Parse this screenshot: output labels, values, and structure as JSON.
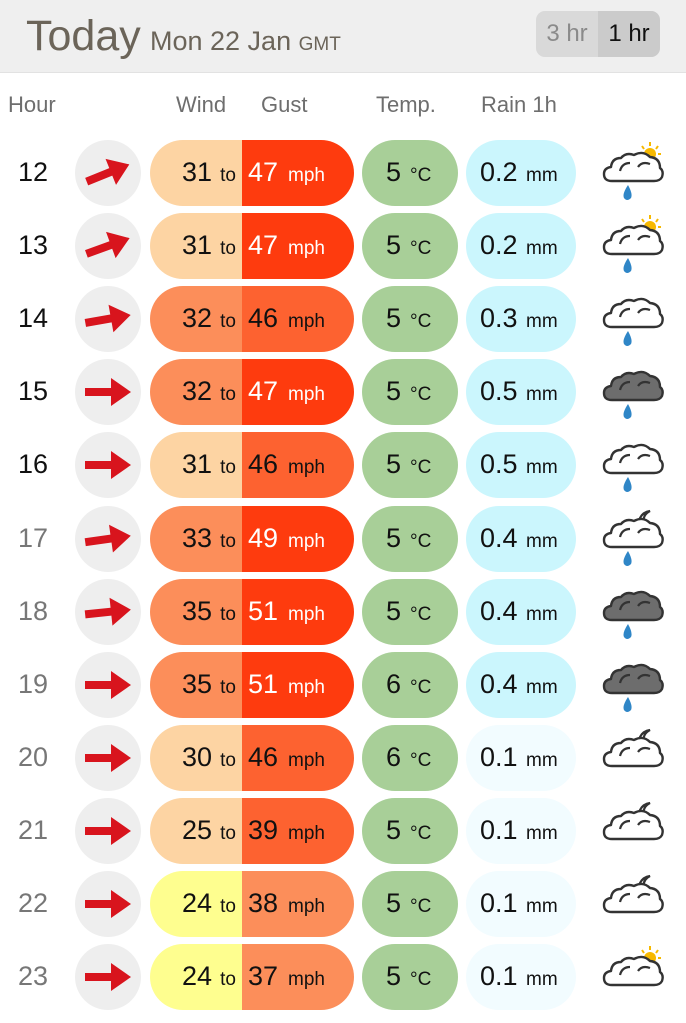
{
  "header": {
    "title": "Today",
    "date": "Mon 22 Jan",
    "timezone": "GMT"
  },
  "interval_toggle": {
    "options": [
      "3 hr",
      "1 hr"
    ],
    "selected": "1 hr"
  },
  "columns": {
    "hour": "Hour",
    "wind": "Wind",
    "gust": "Gust",
    "temp": "Temp.",
    "rain": "Rain 1h"
  },
  "units": {
    "to": "to",
    "speed": "mph",
    "temp": "°C",
    "rain": "mm"
  },
  "colors": {
    "wind_scale": {
      "24": "#fefe8f",
      "25": "#fdd4a3",
      "30": "#fdd4a3",
      "31": "#fdd4a3",
      "32": "#fc8e5a",
      "33": "#fc8e5a",
      "35": "#fc8e5a"
    },
    "gust_scale": {
      "37": "#fc8e5a",
      "38": "#fc8e5a",
      "39": "#fd6230",
      "46": "#fd6230",
      "47": "#fe3b0e",
      "49": "#fe3b0e",
      "51": "#fe3b0e"
    },
    "temp_pill": "#a8cf98",
    "rain_light": "#f2fcff",
    "rain_heavy": "#cbf6fd",
    "arrow": "#d8141d"
  },
  "rows": [
    {
      "hour": "12",
      "past": false,
      "wind": "31",
      "wind_bg": "#fdd4a3",
      "gust": "47",
      "gust_bg": "#fe3b0e",
      "gust_text": "light",
      "temp": "5",
      "rain": "0.2",
      "rain_bg": "#cbf6fd",
      "icon": "sun-cloud-rain-icon",
      "dir_deg": -22
    },
    {
      "hour": "13",
      "past": false,
      "wind": "31",
      "wind_bg": "#fdd4a3",
      "gust": "47",
      "gust_bg": "#fe3b0e",
      "gust_text": "light",
      "temp": "5",
      "rain": "0.2",
      "rain_bg": "#cbf6fd",
      "icon": "sun-cloud-rain-icon",
      "dir_deg": -20
    },
    {
      "hour": "14",
      "past": false,
      "wind": "32",
      "wind_bg": "#fc8e5a",
      "gust": "46",
      "gust_bg": "#fd6230",
      "gust_text": "dark",
      "temp": "5",
      "rain": "0.3",
      "rain_bg": "#cbf6fd",
      "icon": "cloud-rain-icon",
      "dir_deg": -10
    },
    {
      "hour": "15",
      "past": false,
      "wind": "32",
      "wind_bg": "#fc8e5a",
      "gust": "47",
      "gust_bg": "#fe3b0e",
      "gust_text": "light",
      "temp": "5",
      "rain": "0.5",
      "rain_bg": "#cbf6fd",
      "icon": "dark-cloud-rain-icon",
      "dir_deg": 0
    },
    {
      "hour": "16",
      "past": false,
      "wind": "31",
      "wind_bg": "#fdd4a3",
      "gust": "46",
      "gust_bg": "#fd6230",
      "gust_text": "dark",
      "temp": "5",
      "rain": "0.5",
      "rain_bg": "#cbf6fd",
      "icon": "cloud-rain-icon",
      "dir_deg": 0
    },
    {
      "hour": "17",
      "past": true,
      "wind": "33",
      "wind_bg": "#fc8e5a",
      "gust": "49",
      "gust_bg": "#fe3b0e",
      "gust_text": "light",
      "temp": "5",
      "rain": "0.4",
      "rain_bg": "#cbf6fd",
      "icon": "moon-cloud-rain-icon",
      "dir_deg": -8
    },
    {
      "hour": "18",
      "past": true,
      "wind": "35",
      "wind_bg": "#fc8e5a",
      "gust": "51",
      "gust_bg": "#fe3b0e",
      "gust_text": "light",
      "temp": "5",
      "rain": "0.4",
      "rain_bg": "#cbf6fd",
      "icon": "dark-cloud-rain-icon",
      "dir_deg": -6
    },
    {
      "hour": "19",
      "past": true,
      "wind": "35",
      "wind_bg": "#fc8e5a",
      "gust": "51",
      "gust_bg": "#fe3b0e",
      "gust_text": "light",
      "temp": "6",
      "rain": "0.4",
      "rain_bg": "#cbf6fd",
      "icon": "dark-cloud-rain-icon",
      "dir_deg": 0
    },
    {
      "hour": "20",
      "past": true,
      "wind": "30",
      "wind_bg": "#fdd4a3",
      "gust": "46",
      "gust_bg": "#fd6230",
      "gust_text": "dark",
      "temp": "6",
      "rain": "0.1",
      "rain_bg": "#f2fcff",
      "icon": "moon-cloud-icon",
      "dir_deg": 0
    },
    {
      "hour": "21",
      "past": true,
      "wind": "25",
      "wind_bg": "#fdd4a3",
      "gust": "39",
      "gust_bg": "#fd6230",
      "gust_text": "dark",
      "temp": "5",
      "rain": "0.1",
      "rain_bg": "#f2fcff",
      "icon": "moon-cloud-icon",
      "dir_deg": 0
    },
    {
      "hour": "22",
      "past": true,
      "wind": "24",
      "wind_bg": "#fefe8f",
      "gust": "38",
      "gust_bg": "#fc8e5a",
      "gust_text": "dark",
      "temp": "5",
      "rain": "0.1",
      "rain_bg": "#f2fcff",
      "icon": "moon-cloud-icon",
      "dir_deg": 0
    },
    {
      "hour": "23",
      "past": true,
      "wind": "24",
      "wind_bg": "#fefe8f",
      "gust": "37",
      "gust_bg": "#fc8e5a",
      "gust_text": "dark",
      "temp": "5",
      "rain": "0.1",
      "rain_bg": "#f2fcff",
      "icon": "sun-cloud-icon",
      "dir_deg": 0
    }
  ]
}
